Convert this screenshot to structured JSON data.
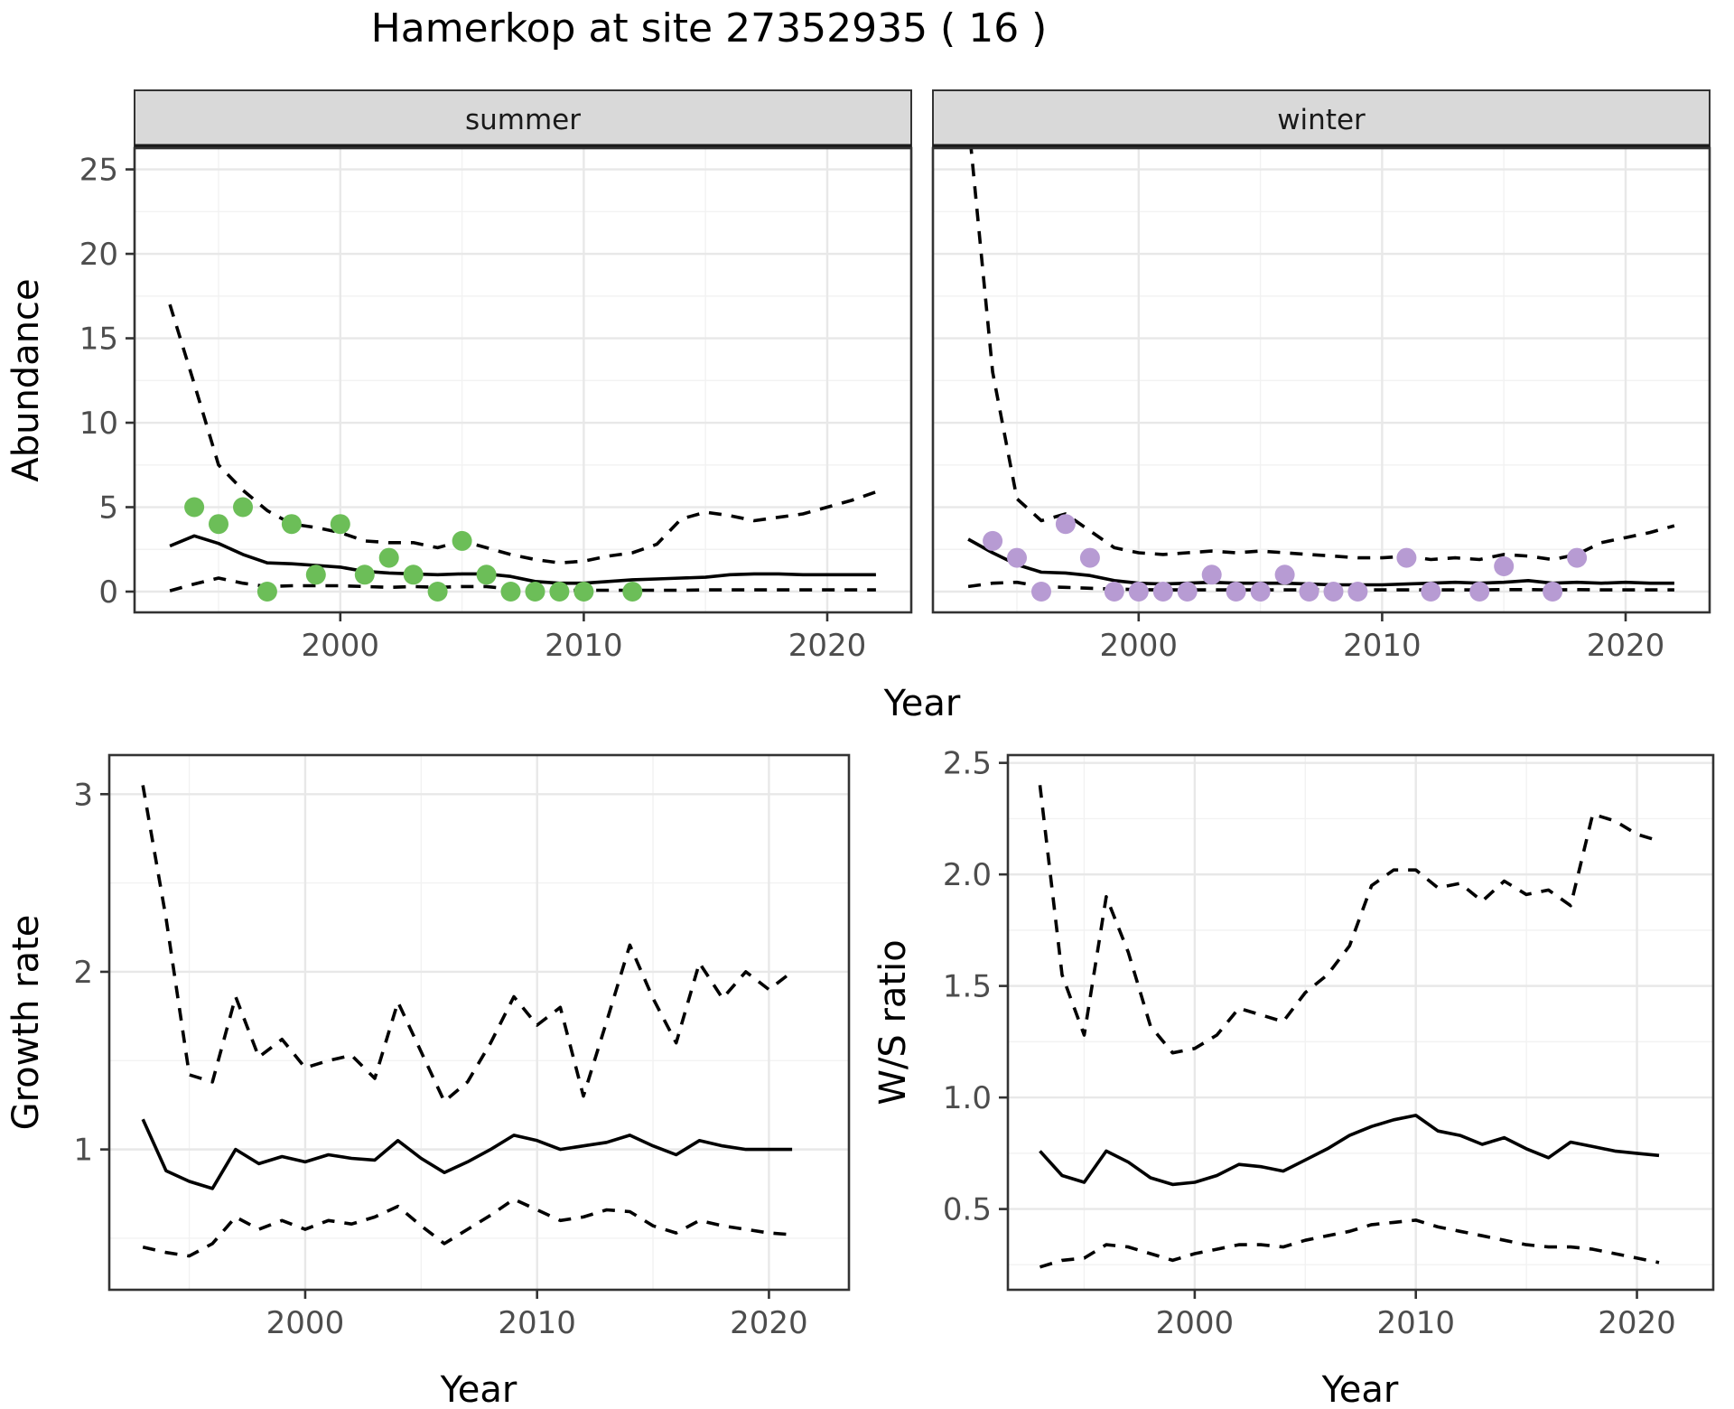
{
  "title": "Hamerkop at site 27352935 ( 16 )",
  "axes": {
    "x_label": "Year",
    "abundance_label": "Abundance",
    "growth_label": "Growth rate",
    "ws_label": "W/S ratio"
  },
  "facets": [
    {
      "label": "summer"
    },
    {
      "label": "winter"
    }
  ],
  "colors": {
    "summer_points": "#6cbe58",
    "winter_points": "#b79bd3",
    "line": "#000000",
    "strip_fill": "#d9d9d9",
    "strip_border": "#333333",
    "panel_border": "#333333",
    "grid_major": "#e8e8e8",
    "grid_minor": "#f2f2f2",
    "tick_mark": "#333333"
  },
  "chart_data": [
    {
      "id": "abundance_summer",
      "type": "line",
      "facet": "summer",
      "xlabel": "Year",
      "ylabel": "Abundance",
      "xlim": [
        1991.55,
        2023.45
      ],
      "ylim": [
        -1.23,
        26.26
      ],
      "x_ticks": [
        2000,
        2010,
        2020
      ],
      "x_tick_labels": [
        "2000",
        "2010",
        "2020"
      ],
      "x_minor": [
        1995,
        2005,
        2015
      ],
      "y_ticks": [
        0,
        5,
        10,
        15,
        20,
        25
      ],
      "y_tick_labels": [
        "0",
        "5",
        "10",
        "15",
        "20",
        "25"
      ],
      "y_minor": [
        2.5,
        7.5,
        12.5,
        17.5,
        22.5
      ],
      "years": [
        1993,
        1994,
        1995,
        1996,
        1997,
        1998,
        1999,
        2000,
        2001,
        2002,
        2003,
        2004,
        2005,
        2006,
        2007,
        2008,
        2009,
        2010,
        2011,
        2012,
        2013,
        2014,
        2015,
        2016,
        2017,
        2018,
        2019,
        2020,
        2021,
        2022
      ],
      "series": [
        {
          "name": "fit",
          "style": "solid",
          "values": [
            2.7,
            3.3,
            2.85,
            2.2,
            1.7,
            1.65,
            1.55,
            1.45,
            1.2,
            1.1,
            1.05,
            1.0,
            1.05,
            1.05,
            0.9,
            0.6,
            0.5,
            0.5,
            0.6,
            0.7,
            0.75,
            0.8,
            0.85,
            1.0,
            1.05,
            1.05,
            1.0,
            1.0,
            1.0,
            1.0
          ]
        },
        {
          "name": "upper_ci",
          "style": "dashed",
          "values": [
            17.0,
            12.3,
            7.5,
            6.0,
            4.8,
            4.0,
            3.8,
            3.5,
            3.0,
            2.9,
            2.9,
            2.6,
            3.0,
            2.6,
            2.2,
            1.9,
            1.7,
            1.8,
            2.1,
            2.3,
            2.8,
            4.3,
            4.7,
            4.5,
            4.2,
            4.4,
            4.6,
            5.0,
            5.4,
            5.9
          ]
        },
        {
          "name": "lower_ci",
          "style": "dashed",
          "values": [
            0.05,
            0.45,
            0.8,
            0.5,
            0.3,
            0.35,
            0.35,
            0.35,
            0.3,
            0.25,
            0.3,
            0.25,
            0.3,
            0.3,
            0.15,
            0.1,
            0.08,
            0.08,
            0.08,
            0.08,
            0.08,
            0.08,
            0.1,
            0.1,
            0.1,
            0.1,
            0.1,
            0.1,
            0.1,
            0.1
          ]
        }
      ],
      "points": {
        "color_key": "summer_points",
        "data": [
          [
            1994,
            5
          ],
          [
            1995,
            4
          ],
          [
            1996,
            5
          ],
          [
            1997,
            0
          ],
          [
            1998,
            4
          ],
          [
            1999,
            1
          ],
          [
            2000,
            4
          ],
          [
            2001,
            1
          ],
          [
            2002,
            2
          ],
          [
            2003,
            1
          ],
          [
            2004,
            0
          ],
          [
            2005,
            3
          ],
          [
            2006,
            1
          ],
          [
            2007,
            0
          ],
          [
            2008,
            0
          ],
          [
            2009,
            0
          ],
          [
            2010,
            0
          ],
          [
            2012,
            0
          ]
        ]
      }
    },
    {
      "id": "abundance_winter",
      "type": "line",
      "facet": "winter",
      "xlabel": "Year",
      "ylabel": "Abundance",
      "xlim": [
        1991.55,
        2023.45
      ],
      "ylim": [
        -1.23,
        26.26
      ],
      "x_ticks": [
        2000,
        2010,
        2020
      ],
      "x_tick_labels": [
        "2000",
        "2010",
        "2020"
      ],
      "x_minor": [
        1995,
        2005,
        2015
      ],
      "y_ticks": [
        0,
        5,
        10,
        15,
        20,
        25
      ],
      "y_tick_labels": [
        "0",
        "5",
        "10",
        "15",
        "20",
        "25"
      ],
      "y_minor": [
        2.5,
        7.5,
        12.5,
        17.5,
        22.5
      ],
      "years": [
        1993,
        1994,
        1995,
        1996,
        1997,
        1998,
        1999,
        2000,
        2001,
        2002,
        2003,
        2004,
        2005,
        2006,
        2007,
        2008,
        2009,
        2010,
        2011,
        2012,
        2013,
        2014,
        2015,
        2016,
        2017,
        2018,
        2019,
        2020,
        2021,
        2022
      ],
      "series": [
        {
          "name": "fit",
          "style": "solid",
          "values": [
            3.1,
            2.3,
            1.6,
            1.15,
            1.1,
            0.95,
            0.65,
            0.5,
            0.45,
            0.5,
            0.55,
            0.5,
            0.5,
            0.5,
            0.45,
            0.4,
            0.4,
            0.4,
            0.45,
            0.5,
            0.55,
            0.5,
            0.55,
            0.65,
            0.5,
            0.55,
            0.5,
            0.55,
            0.5,
            0.5
          ]
        },
        {
          "name": "upper_ci",
          "style": "dashed",
          "values": [
            28.0,
            13.0,
            5.5,
            4.2,
            4.6,
            3.6,
            2.6,
            2.3,
            2.2,
            2.3,
            2.4,
            2.3,
            2.4,
            2.3,
            2.2,
            2.1,
            2.0,
            2.0,
            2.1,
            1.9,
            2.0,
            1.9,
            2.2,
            2.1,
            1.9,
            2.2,
            2.9,
            3.2,
            3.5,
            3.9
          ]
        },
        {
          "name": "lower_ci",
          "style": "dashed",
          "values": [
            0.3,
            0.5,
            0.55,
            0.3,
            0.25,
            0.2,
            0.15,
            0.12,
            0.1,
            0.1,
            0.1,
            0.1,
            0.1,
            0.1,
            0.1,
            0.1,
            0.1,
            0.1,
            0.1,
            0.1,
            0.1,
            0.1,
            0.12,
            0.12,
            0.1,
            0.12,
            0.1,
            0.1,
            0.1,
            0.1
          ]
        }
      ],
      "points": {
        "color_key": "winter_points",
        "data": [
          [
            1994,
            3
          ],
          [
            1995,
            2
          ],
          [
            1996,
            0
          ],
          [
            1997,
            4
          ],
          [
            1998,
            2
          ],
          [
            1999,
            0
          ],
          [
            2000,
            0
          ],
          [
            2001,
            0
          ],
          [
            2002,
            0
          ],
          [
            2003,
            1
          ],
          [
            2004,
            0
          ],
          [
            2005,
            0
          ],
          [
            2006,
            1
          ],
          [
            2007,
            0
          ],
          [
            2008,
            0
          ],
          [
            2009,
            0
          ],
          [
            2011,
            2
          ],
          [
            2012,
            0
          ],
          [
            2014,
            0
          ],
          [
            2015,
            1.5
          ],
          [
            2017,
            0
          ],
          [
            2018,
            2
          ]
        ]
      }
    },
    {
      "id": "growth_rate",
      "type": "line",
      "facet": null,
      "xlabel": "Year",
      "ylabel": "Growth rate",
      "xlim": [
        1991.55,
        2023.45
      ],
      "ylim": [
        0.21,
        3.22
      ],
      "x_ticks": [
        2000,
        2010,
        2020
      ],
      "x_tick_labels": [
        "2000",
        "2010",
        "2020"
      ],
      "x_minor": [
        1995,
        2005,
        2015
      ],
      "y_ticks": [
        1,
        2,
        3
      ],
      "y_tick_labels": [
        "1",
        "2",
        "3"
      ],
      "y_minor": [
        0.5,
        1.5,
        2.5
      ],
      "years": [
        1993,
        1994,
        1995,
        1996,
        1997,
        1998,
        1999,
        2000,
        2001,
        2002,
        2003,
        2004,
        2005,
        2006,
        2007,
        2008,
        2009,
        2010,
        2011,
        2012,
        2013,
        2014,
        2015,
        2016,
        2017,
        2018,
        2019,
        2020,
        2021
      ],
      "series": [
        {
          "name": "fit",
          "style": "solid",
          "values": [
            1.17,
            0.88,
            0.82,
            0.78,
            1.0,
            0.92,
            0.96,
            0.93,
            0.97,
            0.95,
            0.94,
            1.05,
            0.95,
            0.87,
            0.93,
            1.0,
            1.08,
            1.05,
            1.0,
            1.02,
            1.04,
            1.08,
            1.02,
            0.97,
            1.05,
            1.02,
            1.0,
            1.0,
            1.0
          ]
        },
        {
          "name": "upper_ci",
          "style": "dashed",
          "values": [
            3.05,
            2.3,
            1.42,
            1.38,
            1.86,
            1.52,
            1.62,
            1.46,
            1.5,
            1.53,
            1.4,
            1.83,
            1.55,
            1.27,
            1.38,
            1.6,
            1.86,
            1.7,
            1.8,
            1.3,
            1.72,
            2.15,
            1.85,
            1.6,
            2.05,
            1.85,
            2.0,
            1.9,
            2.0
          ]
        },
        {
          "name": "lower_ci",
          "style": "dashed",
          "values": [
            0.45,
            0.42,
            0.4,
            0.47,
            0.62,
            0.55,
            0.6,
            0.55,
            0.6,
            0.58,
            0.62,
            0.68,
            0.57,
            0.47,
            0.55,
            0.63,
            0.72,
            0.66,
            0.6,
            0.62,
            0.66,
            0.65,
            0.57,
            0.53,
            0.6,
            0.57,
            0.55,
            0.53,
            0.52
          ]
        }
      ],
      "points": null
    },
    {
      "id": "ws_ratio",
      "type": "line",
      "facet": null,
      "xlabel": "Year",
      "ylabel": "W/S ratio",
      "xlim": [
        1991.55,
        2023.45
      ],
      "ylim": [
        0.138,
        2.535
      ],
      "x_ticks": [
        2000,
        2010,
        2020
      ],
      "x_tick_labels": [
        "2000",
        "2010",
        "2020"
      ],
      "x_minor": [
        1995,
        2005,
        2015
      ],
      "y_ticks": [
        0.5,
        1.0,
        1.5,
        2.0,
        2.5
      ],
      "y_tick_labels": [
        "0.5",
        "1.0",
        "1.5",
        "2.0",
        "2.5"
      ],
      "y_minor": [
        0.25,
        0.75,
        1.25,
        1.75,
        2.25
      ],
      "years": [
        1993,
        1994,
        1995,
        1996,
        1997,
        1998,
        1999,
        2000,
        2001,
        2002,
        2003,
        2004,
        2005,
        2006,
        2007,
        2008,
        2009,
        2010,
        2011,
        2012,
        2013,
        2014,
        2015,
        2016,
        2017,
        2018,
        2019,
        2020,
        2021
      ],
      "series": [
        {
          "name": "fit",
          "style": "solid",
          "values": [
            0.76,
            0.65,
            0.62,
            0.76,
            0.71,
            0.64,
            0.61,
            0.62,
            0.65,
            0.7,
            0.69,
            0.67,
            0.72,
            0.77,
            0.83,
            0.87,
            0.9,
            0.92,
            0.85,
            0.83,
            0.79,
            0.82,
            0.77,
            0.73,
            0.8,
            0.78,
            0.76,
            0.75,
            0.74
          ]
        },
        {
          "name": "upper_ci",
          "style": "dashed",
          "values": [
            2.4,
            1.55,
            1.28,
            1.9,
            1.65,
            1.32,
            1.2,
            1.22,
            1.28,
            1.4,
            1.37,
            1.34,
            1.47,
            1.55,
            1.68,
            1.95,
            2.02,
            2.02,
            1.94,
            1.96,
            1.88,
            1.97,
            1.91,
            1.93,
            1.86,
            2.27,
            2.24,
            2.18,
            2.15
          ]
        },
        {
          "name": "lower_ci",
          "style": "dashed",
          "values": [
            0.24,
            0.27,
            0.28,
            0.34,
            0.33,
            0.3,
            0.27,
            0.3,
            0.32,
            0.34,
            0.34,
            0.33,
            0.36,
            0.38,
            0.4,
            0.43,
            0.44,
            0.45,
            0.42,
            0.4,
            0.38,
            0.36,
            0.34,
            0.33,
            0.33,
            0.32,
            0.3,
            0.28,
            0.26
          ]
        }
      ],
      "points": null
    }
  ]
}
